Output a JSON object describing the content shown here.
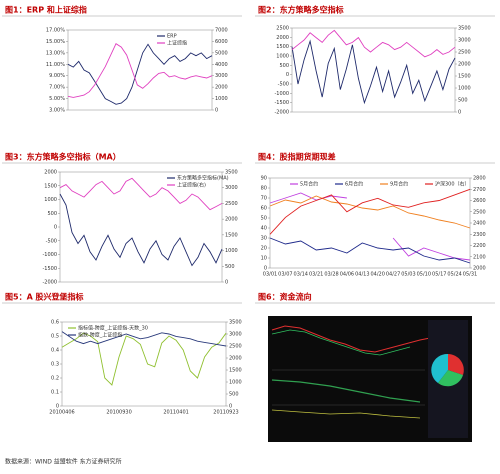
{
  "chart_data": [
    {
      "type": "line",
      "title": "图1：ERP 和上证综指",
      "legend": "upper right",
      "ylim": [
        3,
        17
      ],
      "yticks": [
        {
          "value": 17,
          "label": "17.00%"
        },
        {
          "value": 15,
          "label": "15.00%"
        },
        {
          "value": 13,
          "label": "13.00%"
        },
        {
          "value": 11,
          "label": "11.00%"
        },
        {
          "value": 9,
          "label": "9.00%"
        },
        {
          "value": 7,
          "label": "7.00%"
        },
        {
          "value": 5,
          "label": "5.00%"
        },
        {
          "value": 3,
          "label": "3.00%"
        }
      ],
      "y2lim": [
        0,
        7000
      ],
      "y2ticks": [
        7000,
        6000,
        5000,
        4000,
        3000,
        2000,
        1000,
        0
      ],
      "series": [
        {
          "name": "ERP",
          "color": "#1f2a6b",
          "values": [
            11,
            10.5,
            11.5,
            10,
            9.5,
            8,
            6.5,
            5,
            4.5,
            4,
            4.2,
            5,
            7,
            10,
            13,
            14.5,
            13,
            12,
            11,
            12,
            12.5,
            11.5,
            12,
            13,
            12.5,
            13,
            12,
            12.5
          ]
        },
        {
          "name": "上证综指",
          "color": "#e040c0",
          "axis": "y2",
          "values": [
            1200,
            1100,
            1200,
            1300,
            1600,
            2200,
            3000,
            3800,
            4800,
            5800,
            5500,
            4800,
            3500,
            2200,
            1900,
            2300,
            2800,
            3200,
            3300,
            2900,
            3000,
            2800,
            2700,
            2900,
            3000,
            2900,
            2800,
            3000
          ]
        }
      ]
    },
    {
      "type": "line",
      "title": "图2：东方策略多空指标",
      "ylim": [
        -2000,
        2500
      ],
      "yticks": [
        2500,
        2000,
        1500,
        1000,
        500,
        0,
        -500,
        -1000,
        -1500,
        -2000
      ],
      "y2lim": [
        0,
        3500
      ],
      "y2ticks": [
        3500,
        3000,
        2500,
        2000,
        1500,
        1000,
        500,
        0
      ],
      "series": [
        {
          "color": "#1f2a6b",
          "values": [
            1500,
            -500,
            800,
            1800,
            200,
            -1200,
            600,
            1400,
            -800,
            300,
            1600,
            -200,
            -1500,
            -600,
            400,
            -900,
            200,
            -1200,
            -400,
            500,
            -1000,
            -300,
            -1400,
            -600,
            200,
            -800,
            300,
            900
          ]
        },
        {
          "color": "#e040c0",
          "axis": "y2",
          "values": [
            2600,
            2800,
            3000,
            3300,
            3100,
            2900,
            3200,
            3400,
            3100,
            2800,
            2900,
            3100,
            2700,
            2500,
            2700,
            2900,
            2800,
            2600,
            2700,
            2900,
            2700,
            2500,
            2300,
            2400,
            2600,
            2400,
            2500,
            2700
          ]
        }
      ]
    },
    {
      "type": "line",
      "title": "图3：东方策略多空指标（MA）",
      "legend": "upper right",
      "ylim": [
        -2000,
        2000
      ],
      "yticks": [
        2000,
        1500,
        1000,
        500,
        0,
        -500,
        -1000,
        -1500,
        -2000
      ],
      "y2lim": [
        0,
        3500
      ],
      "y2ticks": [
        3500,
        3000,
        2500,
        2000,
        1500,
        1000,
        500,
        0
      ],
      "series": [
        {
          "name": "东方策略多空指标(MA)",
          "color": "#1f2a6b",
          "values": [
            1200,
            800,
            -200,
            -600,
            -300,
            -900,
            -1200,
            -700,
            -300,
            -800,
            -1100,
            -600,
            -400,
            -900,
            -1300,
            -800,
            -500,
            -1000,
            -1200,
            -700,
            -400,
            -900,
            -1400,
            -1100,
            -600,
            -900,
            -1300,
            -800
          ]
        },
        {
          "name": "上证综指(右)",
          "color": "#e040c0",
          "axis": "y2",
          "values": [
            3000,
            3100,
            2900,
            2800,
            2700,
            2900,
            3100,
            3200,
            3000,
            2800,
            2900,
            3200,
            3300,
            3100,
            2900,
            2700,
            2800,
            3000,
            2900,
            2700,
            2500,
            2600,
            2800,
            2700,
            2500,
            2300,
            2400,
            2500
          ]
        }
      ]
    },
    {
      "type": "line",
      "title": "图4：股指期货期现差",
      "legend": "top",
      "categories": [
        "03/01",
        "03/07",
        "03/14",
        "03/21",
        "03/28",
        "04/06",
        "04/13",
        "04/20",
        "04/27",
        "05/03",
        "05/10",
        "05/17",
        "05/24",
        "05/31"
      ],
      "ylim": [
        0,
        90
      ],
      "yticks": [
        90,
        80,
        70,
        60,
        50,
        40,
        30,
        20,
        10,
        0
      ],
      "y2lim": [
        2000,
        2800
      ],
      "y2ticks": [
        2800,
        2700,
        2600,
        2500,
        2400,
        2300,
        2200,
        2100,
        2000
      ],
      "series": [
        {
          "name": "5月合约",
          "color": "#c040e0",
          "values": [
            65,
            70,
            75,
            68,
            72,
            70,
            null,
            null,
            30,
            12,
            20,
            15,
            10,
            8
          ]
        },
        {
          "name": "6月合约",
          "color": "#1f2a8b",
          "values": [
            30,
            24,
            27,
            18,
            20,
            15,
            25,
            20,
            18,
            20,
            12,
            8,
            10,
            5
          ]
        },
        {
          "name": "9月合约",
          "color": "#f08020",
          "values": [
            62,
            68,
            65,
            72,
            66,
            64,
            60,
            58,
            62,
            55,
            52,
            48,
            45,
            40
          ]
        },
        {
          "name": "沪深300（右）",
          "color": "#e02020",
          "axis": "y2",
          "values": [
            2300,
            2450,
            2550,
            2600,
            2650,
            2500,
            2580,
            2620,
            2560,
            2540,
            2580,
            2600,
            2650,
            2700
          ]
        }
      ]
    },
    {
      "type": "line",
      "title": "图5：A 股兴登堡指标",
      "legend": "upper left",
      "categories": [
        "20100406",
        null,
        null,
        null,
        null,
        null,
        null,
        null,
        "20100930",
        null,
        null,
        null,
        null,
        null,
        null,
        null,
        "20110401",
        null,
        null,
        null,
        null,
        null,
        null,
        "20110923"
      ],
      "ylim": [
        0,
        0.6
      ],
      "yticks": [
        0.6,
        0.5,
        0.4,
        0.3,
        0.2,
        0.1,
        0
      ],
      "y2lim": [
        0,
        3500
      ],
      "y2ticks": [
        3500,
        3000,
        2500,
        2000,
        1500,
        1000,
        500,
        0
      ],
      "series": [
        {
          "name": "指标值-跨度_上证综指-天数_30",
          "color": "#90c030",
          "values": [
            0.42,
            0.45,
            0.48,
            0.52,
            0.5,
            0.46,
            0.2,
            0.15,
            0.35,
            0.5,
            0.48,
            0.44,
            0.3,
            0.28,
            0.45,
            0.5,
            0.47,
            0.4,
            0.25,
            0.2,
            0.35,
            0.42,
            0.45,
            0.52
          ]
        },
        {
          "name": "指数-跨度_上证综指",
          "color": "#2a3a7b",
          "axis": "y2",
          "values": [
            3100,
            2900,
            2700,
            2600,
            2700,
            2600,
            2700,
            2800,
            2900,
            3000,
            2900,
            2800,
            2850,
            2950,
            3050,
            3000,
            2900,
            2850,
            2800,
            2700,
            2650,
            2600,
            2550,
            2500
          ]
        }
      ]
    }
  ],
  "figure6": {
    "title": "图6：资金流向"
  },
  "source": "数据来源：WIND  益盟软件  东方证券研究所"
}
